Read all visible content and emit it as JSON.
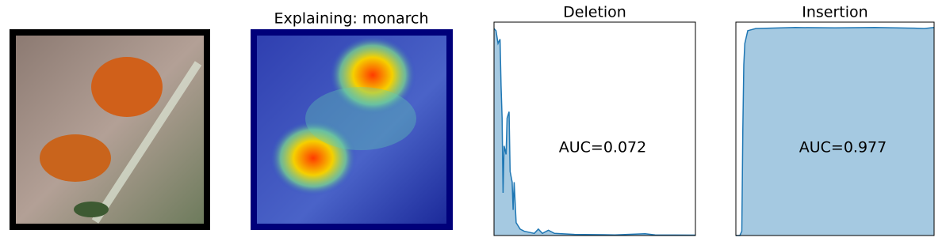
{
  "image_panel": {
    "title": "Explaining: monarch"
  },
  "chart_data": [
    {
      "type": "area",
      "title": "Deletion",
      "annotation": "AUC=0.072",
      "color": "#1f77b4",
      "xlim": [
        0,
        1
      ],
      "ylim": [
        0,
        1
      ],
      "x": [
        0,
        0.01,
        0.02,
        0.03,
        0.035,
        0.04,
        0.045,
        0.05,
        0.06,
        0.065,
        0.075,
        0.08,
        0.09,
        0.095,
        0.1,
        0.11,
        0.13,
        0.15,
        0.2,
        0.22,
        0.24,
        0.27,
        0.3,
        0.4,
        0.6,
        0.75,
        0.8,
        1
      ],
      "values": [
        0.97,
        0.96,
        0.9,
        0.92,
        0.7,
        0.55,
        0.2,
        0.42,
        0.38,
        0.55,
        0.58,
        0.3,
        0.25,
        0.12,
        0.25,
        0.06,
        0.03,
        0.02,
        0.01,
        0.03,
        0.01,
        0.025,
        0.01,
        0.005,
        0.003,
        0.008,
        0.003,
        0.002
      ]
    },
    {
      "type": "area",
      "title": "Insertion",
      "annotation": "AUC=0.977",
      "color": "#1f77b4",
      "xlim": [
        0,
        1
      ],
      "ylim": [
        0,
        1
      ],
      "x": [
        0,
        0.02,
        0.03,
        0.035,
        0.04,
        0.045,
        0.06,
        0.1,
        0.3,
        0.5,
        0.7,
        0.9,
        0.95,
        1
      ],
      "values": [
        0,
        0,
        0.02,
        0.5,
        0.8,
        0.9,
        0.96,
        0.97,
        0.975,
        0.973,
        0.975,
        0.972,
        0.97,
        0.975
      ]
    }
  ]
}
